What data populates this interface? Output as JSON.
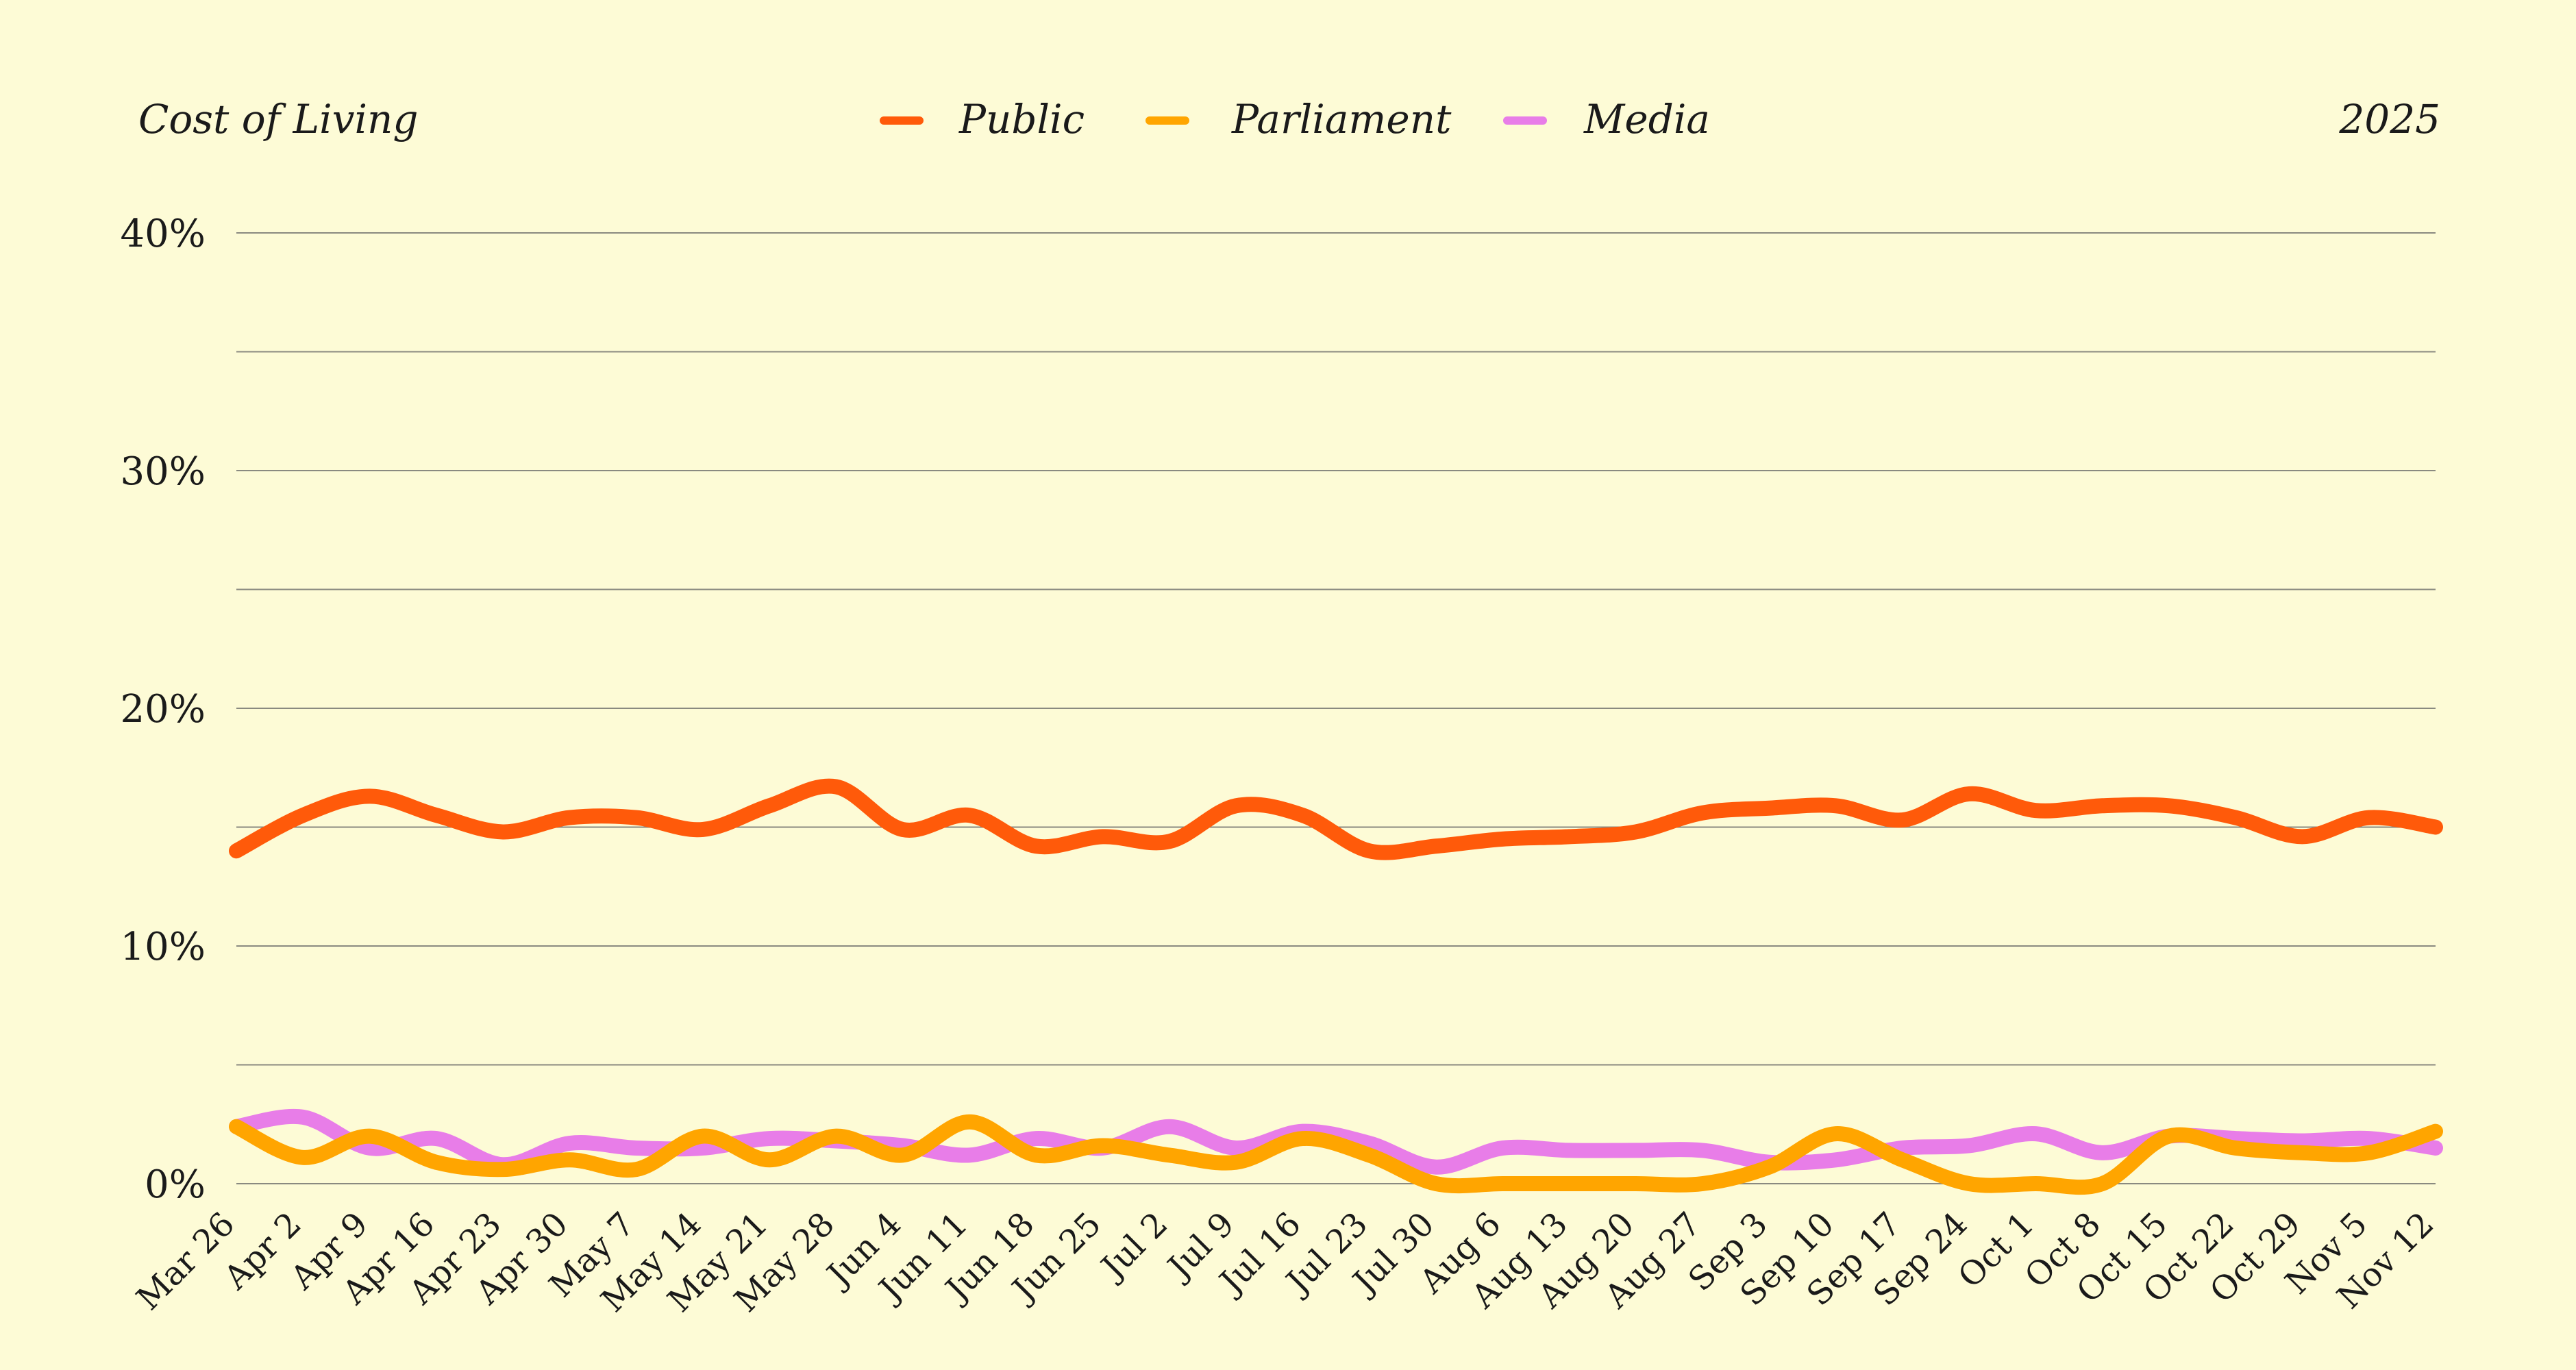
{
  "chart_data": {
    "type": "line",
    "title": "Cost of Living",
    "year_label": "2025",
    "xlabel": "",
    "ylabel": "",
    "ylim": [
      0,
      40
    ],
    "yticks": [
      "0%",
      "10%",
      "20%",
      "30%",
      "40%"
    ],
    "grid": true,
    "legend_position": "top-center",
    "x": [
      "Mar 26",
      "Apr 2",
      "Apr 9",
      "Apr 16",
      "Apr 23",
      "Apr 30",
      "May 7",
      "May 14",
      "May 21",
      "May 28",
      "Jun 4",
      "Jun 11",
      "Jun 18",
      "Jun 25",
      "Jul 2",
      "Jul 9",
      "Jul 16",
      "Jul 23",
      "Jul 30",
      "Aug 6",
      "Aug 13",
      "Aug 20",
      "Aug 27",
      "Sep 3",
      "Sep 10",
      "Sep 17",
      "Sep 24",
      "Oct 1",
      "Oct 8",
      "Oct 15",
      "Oct 22",
      "Oct 29",
      "Nov 5",
      "Nov 12"
    ],
    "series": [
      {
        "name": "Public",
        "color": "#FF5A0A",
        "values": [
          14.0,
          15.5,
          16.3,
          15.5,
          14.8,
          15.4,
          15.4,
          14.9,
          15.9,
          16.7,
          14.9,
          15.5,
          14.2,
          14.6,
          14.4,
          15.9,
          15.5,
          14.0,
          14.2,
          14.5,
          14.6,
          14.8,
          15.6,
          15.8,
          15.9,
          15.3,
          16.4,
          15.7,
          15.9,
          15.9,
          15.4,
          14.6,
          15.4,
          15.0
        ]
      },
      {
        "name": "Parliament",
        "color": "#FFA500",
        "values": [
          2.4,
          1.1,
          2.0,
          0.9,
          0.6,
          1.0,
          0.6,
          2.0,
          1.0,
          2.0,
          1.2,
          2.6,
          1.2,
          1.6,
          1.2,
          0.9,
          1.9,
          1.2,
          0.0,
          0.0,
          0.0,
          0.0,
          0.0,
          0.7,
          2.1,
          1.0,
          0.0,
          0.0,
          0.0,
          2.0,
          1.5,
          1.3,
          1.3,
          2.2
        ]
      },
      {
        "name": "Media",
        "color": "#E87DE8",
        "values": [
          2.4,
          2.8,
          1.5,
          1.9,
          0.8,
          1.7,
          1.5,
          1.5,
          1.9,
          1.8,
          1.6,
          1.2,
          1.9,
          1.5,
          2.4,
          1.5,
          2.2,
          1.7,
          0.7,
          1.5,
          1.4,
          1.4,
          1.4,
          0.9,
          1.0,
          1.5,
          1.6,
          2.1,
          1.3,
          2.0,
          1.9,
          1.8,
          1.9,
          1.5
        ]
      }
    ]
  }
}
